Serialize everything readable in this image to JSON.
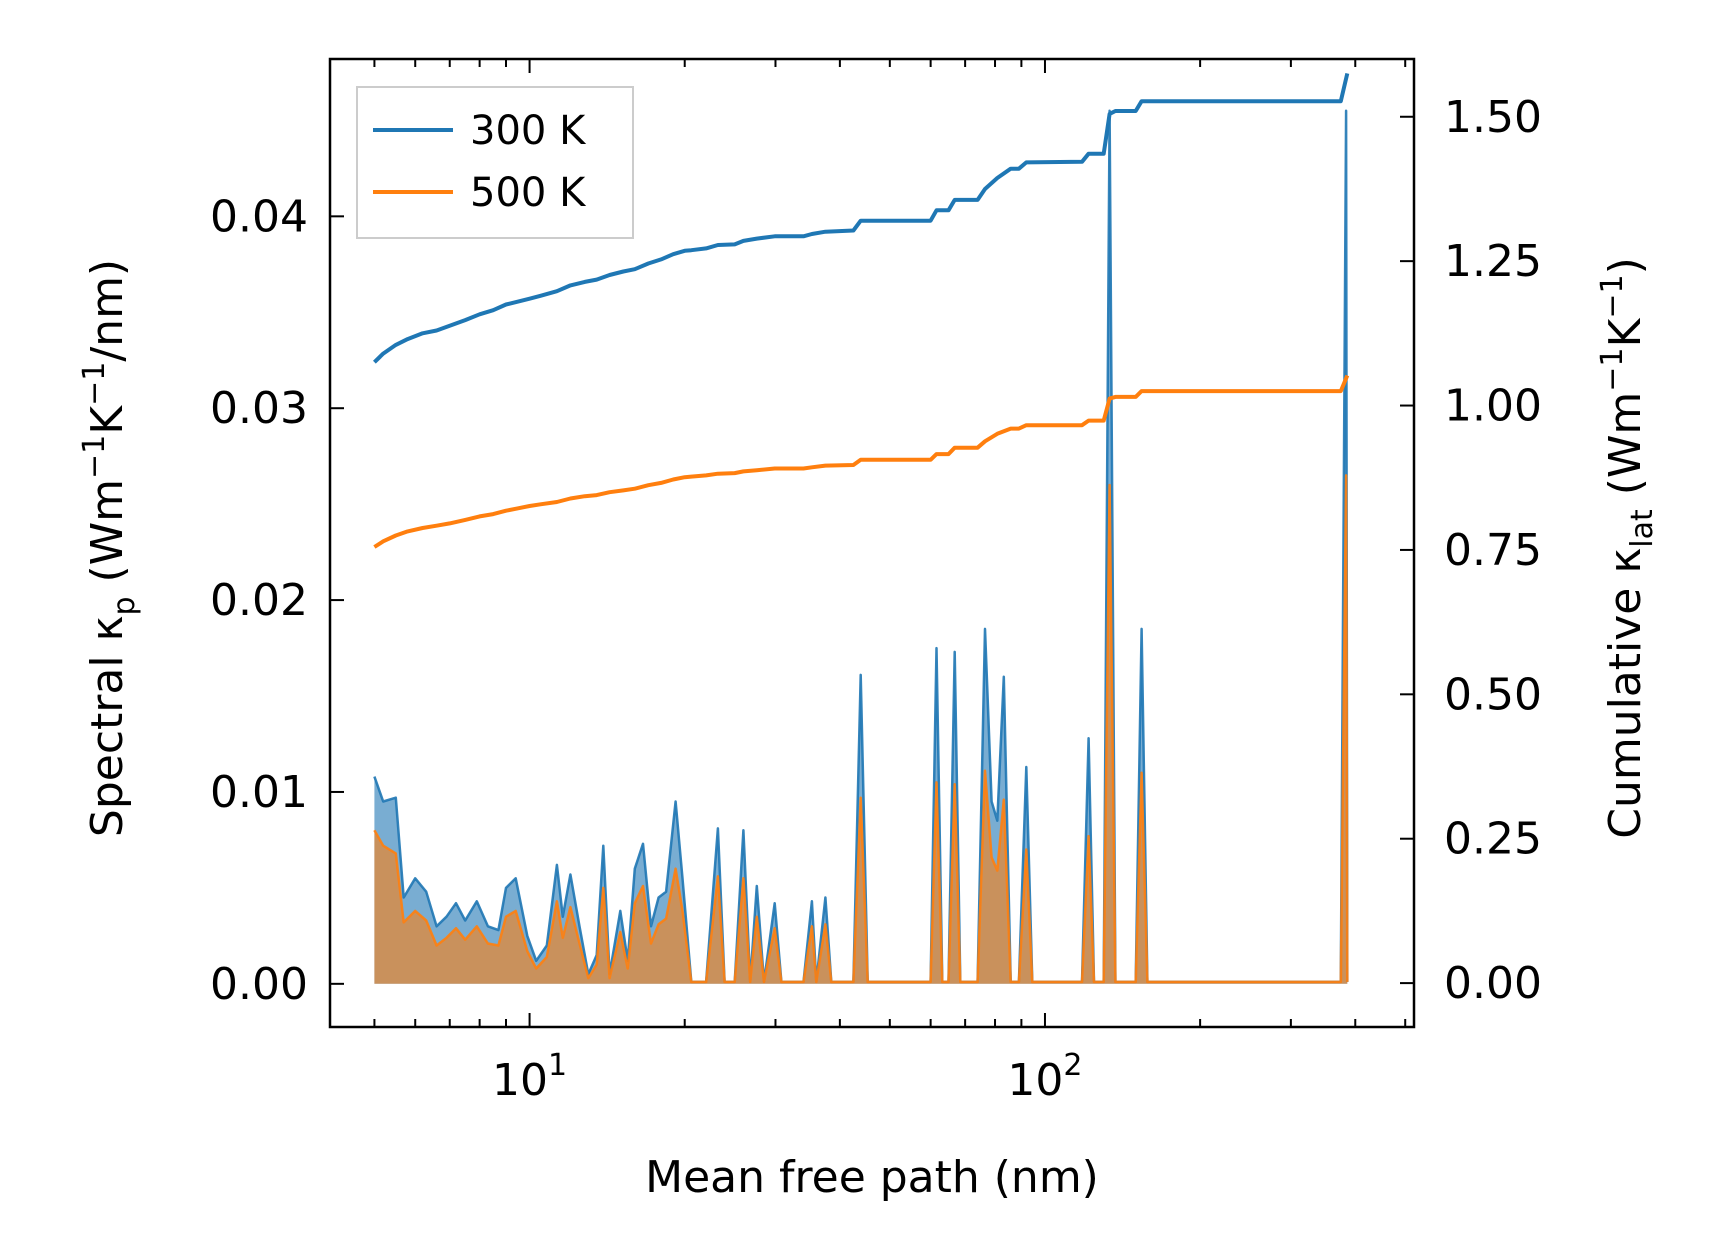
{
  "chart_data": {
    "type": "line",
    "xscale": "log",
    "xlabel": "Mean free path (nm)",
    "ylabel_left": {
      "prefix": "Spectral κ",
      "sub": "p",
      "units": " (Wm",
      "sup1": "−1",
      "k": "K",
      "sup2": "−1",
      "tail": "/nm)"
    },
    "ylabel_right": {
      "prefix": "Cumulative κ",
      "sub": "lat",
      "units": " (Wm",
      "sup1": "−1",
      "k": "K",
      "sup2": "−1",
      "tail": ")"
    },
    "xlim": [
      4.1,
      520
    ],
    "ylim_left": [
      -0.00225,
      0.0482
    ],
    "ylim_right": [
      -0.076,
      1.6
    ],
    "x_ticks": [
      {
        "value": 10,
        "base": "10",
        "exp": "1"
      },
      {
        "value": 100,
        "base": "10",
        "exp": "2"
      }
    ],
    "y_left_ticks": [
      {
        "value": 0.0,
        "label": "0.00"
      },
      {
        "value": 0.01,
        "label": "0.01"
      },
      {
        "value": 0.02,
        "label": "0.02"
      },
      {
        "value": 0.03,
        "label": "0.03"
      },
      {
        "value": 0.04,
        "label": "0.04"
      }
    ],
    "y_right_ticks": [
      {
        "value": 0.0,
        "label": "0.00"
      },
      {
        "value": 0.25,
        "label": "0.25"
      },
      {
        "value": 0.5,
        "label": "0.50"
      },
      {
        "value": 0.75,
        "label": "0.75"
      },
      {
        "value": 1.0,
        "label": "1.00"
      },
      {
        "value": 1.25,
        "label": "1.25"
      },
      {
        "value": 1.5,
        "label": "1.50"
      }
    ],
    "legend": {
      "position": "top-left",
      "entries": [
        {
          "name": "300 K",
          "color": "#1f77b4"
        },
        {
          "name": "500 K",
          "color": "#ff7f0e"
        }
      ]
    },
    "series": [
      {
        "name": "300 K",
        "color": "#1f77b4",
        "spectral_axis": "left",
        "spectral": [
          [
            5.0,
            0.0108
          ],
          [
            5.2,
            0.0095
          ],
          [
            5.5,
            0.0097
          ],
          [
            5.7,
            0.0045
          ],
          [
            6.0,
            0.0055
          ],
          [
            6.3,
            0.0048
          ],
          [
            6.6,
            0.003
          ],
          [
            6.9,
            0.0035
          ],
          [
            7.2,
            0.0042
          ],
          [
            7.5,
            0.0033
          ],
          [
            7.9,
            0.0043
          ],
          [
            8.3,
            0.003
          ],
          [
            8.7,
            0.0028
          ],
          [
            9.0,
            0.005
          ],
          [
            9.4,
            0.0055
          ],
          [
            9.9,
            0.0025
          ],
          [
            10.3,
            0.0012
          ],
          [
            10.8,
            0.002
          ],
          [
            11.3,
            0.0062
          ],
          [
            11.6,
            0.0035
          ],
          [
            12.0,
            0.0057
          ],
          [
            12.5,
            0.003
          ],
          [
            13.0,
            0.0005
          ],
          [
            13.5,
            0.0015
          ],
          [
            13.9,
            0.0072
          ],
          [
            14.3,
            0.0005
          ],
          [
            15.0,
            0.0038
          ],
          [
            15.5,
            0.0012
          ],
          [
            16.0,
            0.006
          ],
          [
            16.6,
            0.0073
          ],
          [
            17.2,
            0.003
          ],
          [
            17.8,
            0.0045
          ],
          [
            18.4,
            0.0048
          ],
          [
            19.2,
            0.0095
          ],
          [
            19.8,
            0.0055
          ],
          [
            20.6,
            0.0001
          ],
          [
            22.0,
            0.0001
          ],
          [
            23.2,
            0.0081
          ],
          [
            23.9,
            0.0001
          ],
          [
            25.0,
            0.0001
          ],
          [
            26.0,
            0.008
          ],
          [
            26.8,
            0.0001
          ],
          [
            27.6,
            0.0051
          ],
          [
            28.5,
            0.0001
          ],
          [
            29.9,
            0.0042
          ],
          [
            30.8,
            0.0001
          ],
          [
            34.0,
            0.0001
          ],
          [
            35.3,
            0.0043
          ],
          [
            36.0,
            0.0001
          ],
          [
            37.5,
            0.0045
          ],
          [
            38.5,
            0.0001
          ],
          [
            42.5,
            0.0001
          ],
          [
            43.9,
            0.0161
          ],
          [
            45.3,
            0.0001
          ],
          [
            60.0,
            0.0001
          ],
          [
            61.6,
            0.0175
          ],
          [
            63.2,
            0.0001
          ],
          [
            65.0,
            0.0001
          ],
          [
            66.8,
            0.0173
          ],
          [
            68.5,
            0.0001
          ],
          [
            74.0,
            0.0001
          ],
          [
            76.5,
            0.0185
          ],
          [
            78.8,
            0.0095
          ],
          [
            80.8,
            0.0085
          ],
          [
            83.2,
            0.016
          ],
          [
            85.8,
            0.0001
          ],
          [
            89.0,
            0.0001
          ],
          [
            92.0,
            0.0113
          ],
          [
            94.5,
            0.0001
          ],
          [
            118.0,
            0.0001
          ],
          [
            121.5,
            0.0128
          ],
          [
            124.5,
            0.0001
          ],
          [
            130.0,
            0.0001
          ],
          [
            133.5,
            0.0455
          ],
          [
            137.0,
            0.0001
          ],
          [
            150.0,
            0.0001
          ],
          [
            154.0,
            0.0185
          ],
          [
            158.0,
            0.0001
          ],
          [
            375.0,
            0.0001
          ],
          [
            384.0,
            0.0455
          ],
          [
            386.0,
            0.0001
          ]
        ],
        "cumulative_axis": "right",
        "cumulative": [
          [
            5.0,
            1.075
          ],
          [
            5.2,
            1.09
          ],
          [
            5.5,
            1.105
          ],
          [
            5.8,
            1.115
          ],
          [
            6.2,
            1.125
          ],
          [
            6.6,
            1.13
          ],
          [
            7.0,
            1.138
          ],
          [
            7.5,
            1.148
          ],
          [
            8.0,
            1.158
          ],
          [
            8.5,
            1.165
          ],
          [
            9.0,
            1.175
          ],
          [
            9.5,
            1.18
          ],
          [
            10.0,
            1.185
          ],
          [
            10.5,
            1.19
          ],
          [
            11.3,
            1.198
          ],
          [
            12.0,
            1.208
          ],
          [
            12.8,
            1.214
          ],
          [
            13.5,
            1.218
          ],
          [
            14.3,
            1.226
          ],
          [
            15.2,
            1.232
          ],
          [
            16.0,
            1.236
          ],
          [
            17.0,
            1.246
          ],
          [
            18.0,
            1.253
          ],
          [
            19.0,
            1.262
          ],
          [
            20.0,
            1.268
          ],
          [
            20.6,
            1.269
          ],
          [
            22.0,
            1.272
          ],
          [
            23.2,
            1.278
          ],
          [
            25.0,
            1.279
          ],
          [
            26.0,
            1.285
          ],
          [
            27.6,
            1.289
          ],
          [
            29.9,
            1.293
          ],
          [
            34.0,
            1.293
          ],
          [
            35.3,
            1.297
          ],
          [
            37.5,
            1.301
          ],
          [
            42.5,
            1.303
          ],
          [
            43.9,
            1.32
          ],
          [
            60.0,
            1.32
          ],
          [
            61.6,
            1.338
          ],
          [
            65.0,
            1.338
          ],
          [
            66.8,
            1.356
          ],
          [
            74.0,
            1.356
          ],
          [
            76.5,
            1.375
          ],
          [
            80.8,
            1.394
          ],
          [
            85.8,
            1.41
          ],
          [
            89.0,
            1.41
          ],
          [
            92.0,
            1.421
          ],
          [
            118.0,
            1.422
          ],
          [
            121.5,
            1.436
          ],
          [
            130.0,
            1.436
          ],
          [
            133.5,
            1.505
          ],
          [
            137.0,
            1.51
          ],
          [
            150.0,
            1.51
          ],
          [
            154.0,
            1.527
          ],
          [
            375.0,
            1.527
          ],
          [
            386.0,
            1.575
          ]
        ]
      },
      {
        "name": "500 K",
        "color": "#ff7f0e",
        "spectral_axis": "left",
        "spectral": [
          [
            5.0,
            0.008
          ],
          [
            5.2,
            0.0072
          ],
          [
            5.5,
            0.0068
          ],
          [
            5.7,
            0.0032
          ],
          [
            6.0,
            0.0038
          ],
          [
            6.3,
            0.0033
          ],
          [
            6.6,
            0.002
          ],
          [
            6.9,
            0.0024
          ],
          [
            7.2,
            0.0029
          ],
          [
            7.5,
            0.0023
          ],
          [
            7.9,
            0.003
          ],
          [
            8.3,
            0.0021
          ],
          [
            8.7,
            0.002
          ],
          [
            9.0,
            0.0035
          ],
          [
            9.4,
            0.0038
          ],
          [
            9.9,
            0.0017
          ],
          [
            10.3,
            0.0008
          ],
          [
            10.8,
            0.0014
          ],
          [
            11.3,
            0.0043
          ],
          [
            11.6,
            0.0024
          ],
          [
            12.0,
            0.004
          ],
          [
            12.5,
            0.0021
          ],
          [
            13.0,
            0.0003
          ],
          [
            13.5,
            0.001
          ],
          [
            13.9,
            0.005
          ],
          [
            14.3,
            0.0003
          ],
          [
            15.0,
            0.0027
          ],
          [
            15.5,
            0.0008
          ],
          [
            16.0,
            0.0042
          ],
          [
            16.6,
            0.0051
          ],
          [
            17.2,
            0.0021
          ],
          [
            17.8,
            0.0031
          ],
          [
            18.4,
            0.0034
          ],
          [
            19.2,
            0.006
          ],
          [
            19.8,
            0.0038
          ],
          [
            20.6,
            0.0001
          ],
          [
            22.0,
            0.0001
          ],
          [
            23.2,
            0.0056
          ],
          [
            23.9,
            0.0001
          ],
          [
            25.0,
            0.0001
          ],
          [
            26.0,
            0.0055
          ],
          [
            26.8,
            0.0001
          ],
          [
            27.6,
            0.0035
          ],
          [
            28.5,
            0.0001
          ],
          [
            29.9,
            0.0029
          ],
          [
            30.8,
            0.0001
          ],
          [
            34.0,
            0.0001
          ],
          [
            35.3,
            0.003
          ],
          [
            36.0,
            0.0001
          ],
          [
            37.5,
            0.0031
          ],
          [
            38.5,
            0.0001
          ],
          [
            42.5,
            0.0001
          ],
          [
            43.9,
            0.0097
          ],
          [
            45.3,
            0.0001
          ],
          [
            60.0,
            0.0001
          ],
          [
            61.6,
            0.0105
          ],
          [
            63.2,
            0.0001
          ],
          [
            65.0,
            0.0001
          ],
          [
            66.8,
            0.0104
          ],
          [
            68.5,
            0.0001
          ],
          [
            74.0,
            0.0001
          ],
          [
            76.5,
            0.0111
          ],
          [
            78.8,
            0.0066
          ],
          [
            80.8,
            0.0059
          ],
          [
            83.2,
            0.0096
          ],
          [
            85.8,
            0.0001
          ],
          [
            89.0,
            0.0001
          ],
          [
            92.0,
            0.007
          ],
          [
            94.5,
            0.0001
          ],
          [
            118.0,
            0.0001
          ],
          [
            121.5,
            0.0077
          ],
          [
            124.5,
            0.0001
          ],
          [
            130.0,
            0.0001
          ],
          [
            133.5,
            0.026
          ],
          [
            137.0,
            0.0001
          ],
          [
            150.0,
            0.0001
          ],
          [
            154.0,
            0.011
          ],
          [
            158.0,
            0.0001
          ],
          [
            375.0,
            0.0001
          ],
          [
            384.0,
            0.0265
          ],
          [
            386.0,
            0.0001
          ]
        ],
        "cumulative_axis": "right",
        "cumulative": [
          [
            5.0,
            0.755
          ],
          [
            5.2,
            0.765
          ],
          [
            5.5,
            0.775
          ],
          [
            5.8,
            0.782
          ],
          [
            6.2,
            0.788
          ],
          [
            6.6,
            0.792
          ],
          [
            7.0,
            0.796
          ],
          [
            7.5,
            0.802
          ],
          [
            8.0,
            0.808
          ],
          [
            8.5,
            0.812
          ],
          [
            9.0,
            0.818
          ],
          [
            9.5,
            0.822
          ],
          [
            10.0,
            0.826
          ],
          [
            10.5,
            0.829
          ],
          [
            11.3,
            0.833
          ],
          [
            12.0,
            0.839
          ],
          [
            12.8,
            0.843
          ],
          [
            13.5,
            0.845
          ],
          [
            14.3,
            0.85
          ],
          [
            15.2,
            0.853
          ],
          [
            16.0,
            0.856
          ],
          [
            17.0,
            0.862
          ],
          [
            18.0,
            0.866
          ],
          [
            19.0,
            0.872
          ],
          [
            20.0,
            0.876
          ],
          [
            20.6,
            0.877
          ],
          [
            22.0,
            0.879
          ],
          [
            23.2,
            0.882
          ],
          [
            25.0,
            0.883
          ],
          [
            26.0,
            0.886
          ],
          [
            27.6,
            0.888
          ],
          [
            29.9,
            0.891
          ],
          [
            34.0,
            0.891
          ],
          [
            35.3,
            0.893
          ],
          [
            37.5,
            0.896
          ],
          [
            42.5,
            0.897
          ],
          [
            43.9,
            0.906
          ],
          [
            60.0,
            0.906
          ],
          [
            61.6,
            0.916
          ],
          [
            65.0,
            0.916
          ],
          [
            66.8,
            0.927
          ],
          [
            74.0,
            0.927
          ],
          [
            76.5,
            0.938
          ],
          [
            80.8,
            0.951
          ],
          [
            85.8,
            0.96
          ],
          [
            89.0,
            0.96
          ],
          [
            92.0,
            0.966
          ],
          [
            118.0,
            0.966
          ],
          [
            121.5,
            0.974
          ],
          [
            130.0,
            0.974
          ],
          [
            133.5,
            1.012
          ],
          [
            137.0,
            1.015
          ],
          [
            150.0,
            1.015
          ],
          [
            154.0,
            1.025
          ],
          [
            375.0,
            1.025
          ],
          [
            386.0,
            1.052
          ]
        ]
      }
    ]
  }
}
